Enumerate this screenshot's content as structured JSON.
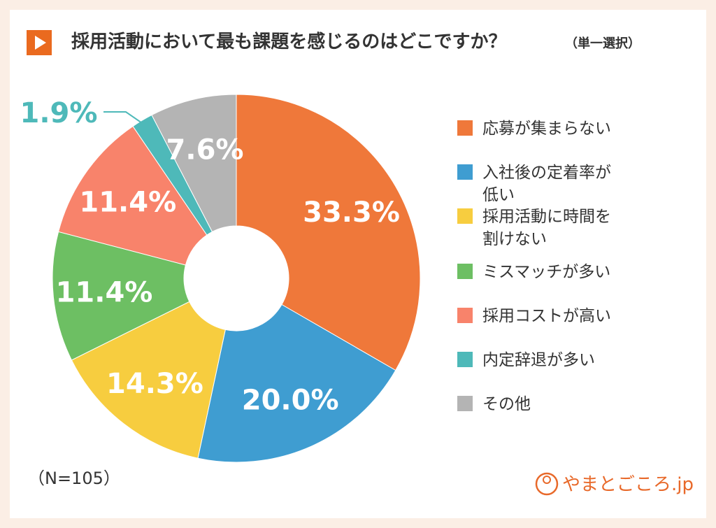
{
  "chart_data": {
    "type": "donut",
    "title": "採用活動において最も課題を感じるのはどこですか？",
    "subtitle": "（単一選択）",
    "categories": [
      "応募が集まらない",
      "入社後の定着率が低い",
      "採用活動に時間を割けない",
      "ミスマッチが多い",
      "採用コストが高い",
      "内定辞退が多い",
      "その他"
    ],
    "values": [
      33.3,
      20.0,
      14.3,
      11.4,
      11.4,
      1.9,
      7.6
    ],
    "value_labels": [
      "33.3%",
      "20.0%",
      "14.3%",
      "11.4%",
      "11.4%",
      "1.9%",
      "7.6%"
    ],
    "colors": [
      "#ef783a",
      "#3f9dd1",
      "#f7cd3f",
      "#6dbf63",
      "#f8836b",
      "#4eb9b9",
      "#b4b4b4"
    ],
    "note": "（N=105）",
    "source": "やまとごころ.jp"
  }
}
